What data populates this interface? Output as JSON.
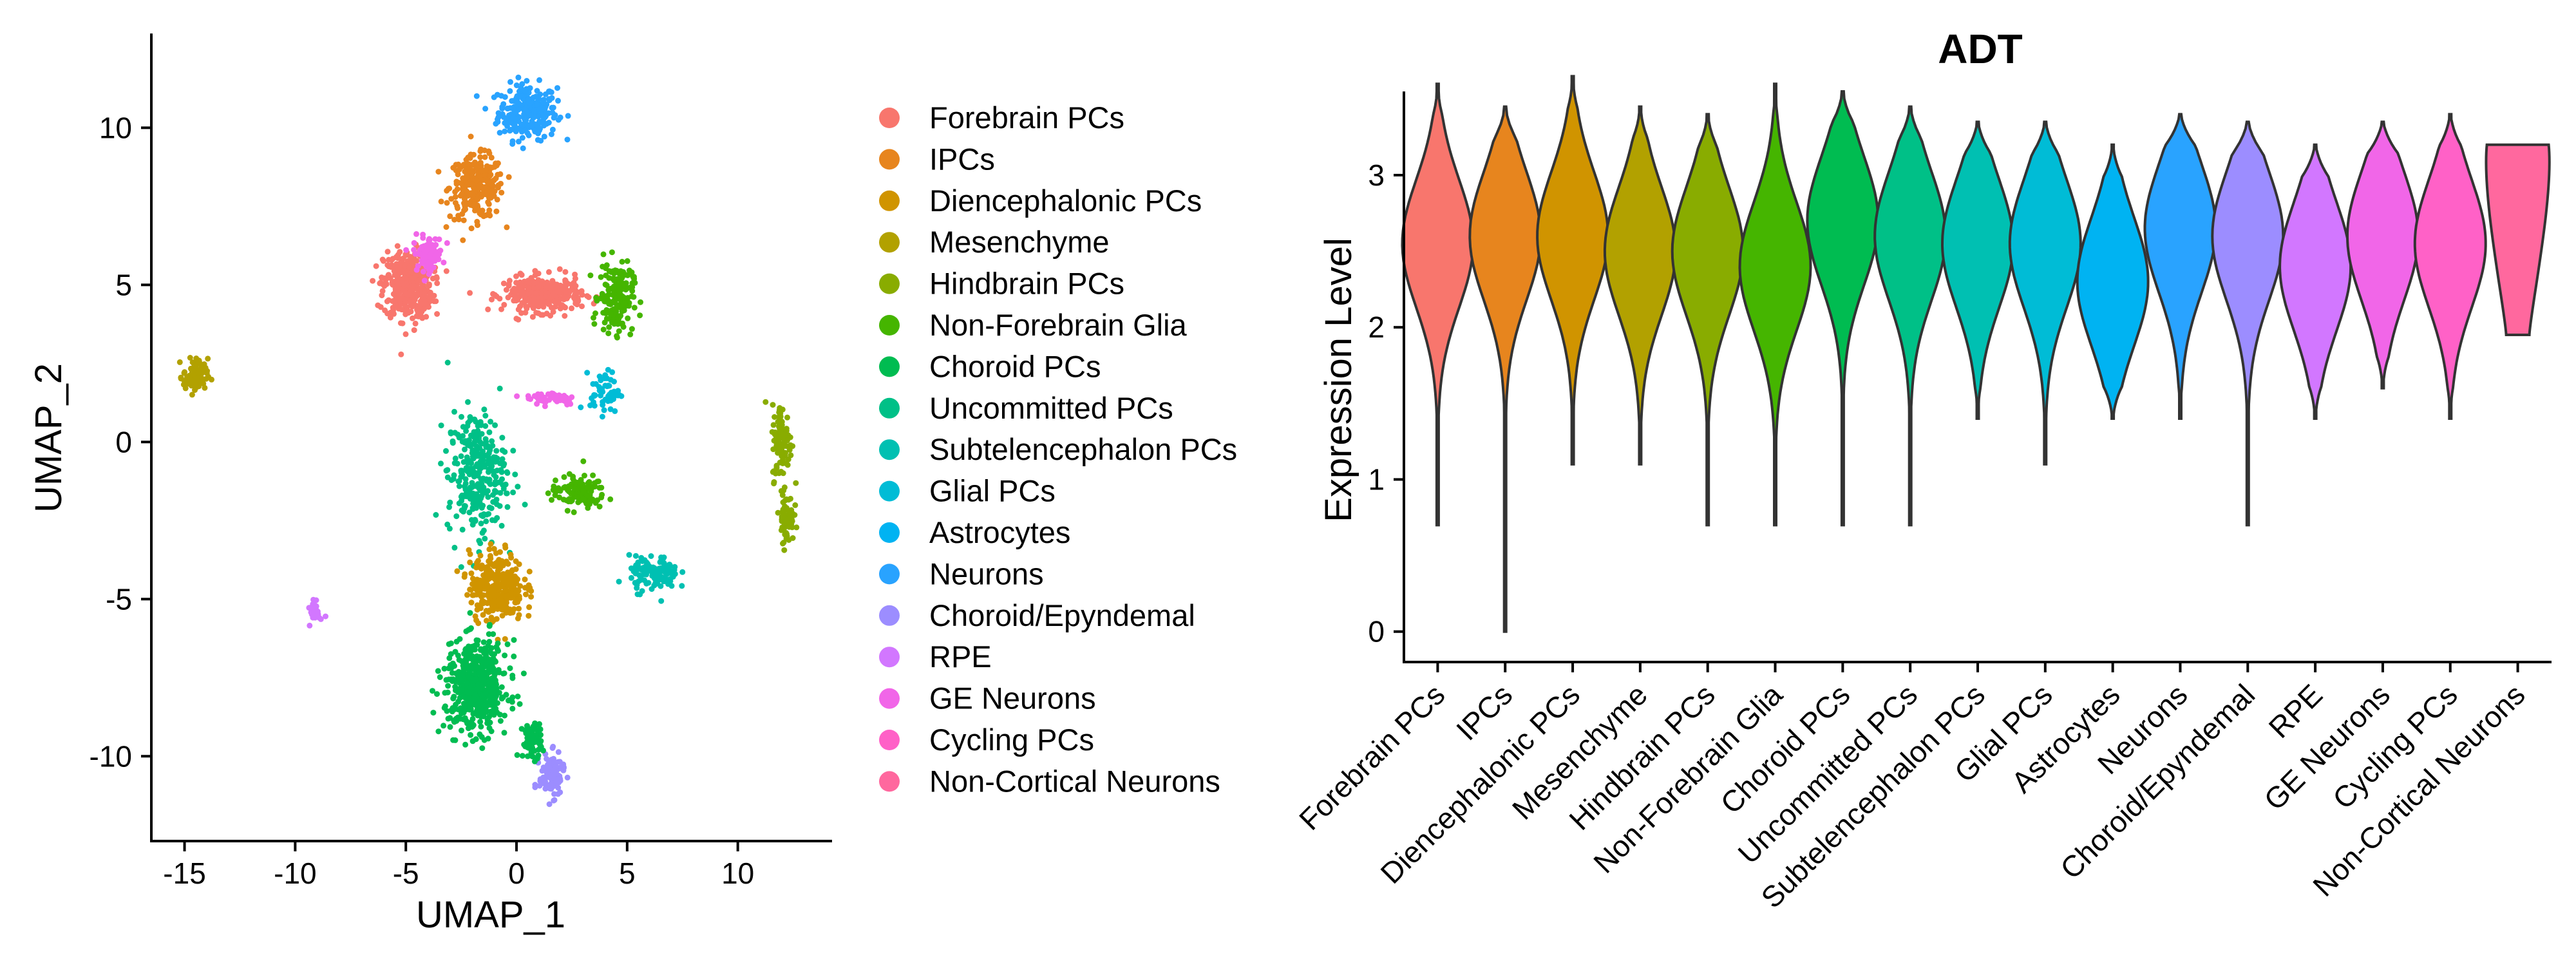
{
  "chart_data": [
    {
      "type": "scatter",
      "title": "",
      "xlabel": "UMAP_1",
      "ylabel": "UMAP_2",
      "xlim": [
        -16.5,
        14.2
      ],
      "ylim": [
        -12.7,
        13.0
      ],
      "xticks": [
        -15,
        -10,
        -5,
        0,
        5,
        10
      ],
      "yticks": [
        -10,
        -5,
        0,
        5,
        10
      ],
      "legend_position": "right",
      "legend": [
        {
          "label": "Forebrain PCs",
          "color": "#F8766D"
        },
        {
          "label": "IPCs",
          "color": "#E7851E"
        },
        {
          "label": "Diencephalonic PCs",
          "color": "#D09400"
        },
        {
          "label": "Mesenchyme",
          "color": "#B2A100"
        },
        {
          "label": "Hindbrain PCs",
          "color": "#89AC00"
        },
        {
          "label": "Non-Forebrain Glia",
          "color": "#45B500"
        },
        {
          "label": "Choroid PCs",
          "color": "#00BC51"
        },
        {
          "label": "Uncommitted PCs",
          "color": "#00C087"
        },
        {
          "label": "Subtelencephalon PCs",
          "color": "#00C0B2"
        },
        {
          "label": "Glial PCs",
          "color": "#00BCD6"
        },
        {
          "label": "Astrocytes",
          "color": "#00B3F2"
        },
        {
          "label": "Neurons",
          "color": "#29A3FF"
        },
        {
          "label": "Choroid/Epyndemal",
          "color": "#9C8DFF"
        },
        {
          "label": "RPE",
          "color": "#D277FF"
        },
        {
          "label": "GE Neurons",
          "color": "#F166E8"
        },
        {
          "label": "Cycling PCs",
          "color": "#FF61C7"
        },
        {
          "label": "Non-Cortical Neurons",
          "color": "#FF689E"
        }
      ],
      "clusters": [
        {
          "series": "Neurons",
          "x": 0.5,
          "y": 10.5,
          "sx": 1.2,
          "sy": 0.8,
          "n": 260
        },
        {
          "series": "IPCs",
          "x": -1.8,
          "y": 8.1,
          "sx": 1.1,
          "sy": 0.9,
          "n": 260
        },
        {
          "series": "Forebrain PCs",
          "x": -4.9,
          "y": 5.0,
          "sx": 1.0,
          "sy": 1.0,
          "n": 420
        },
        {
          "series": "GE Neurons",
          "x": -4.0,
          "y": 6.0,
          "sx": 0.6,
          "sy": 0.5,
          "n": 80
        },
        {
          "series": "Forebrain PCs",
          "x": 1.2,
          "y": 4.7,
          "sx": 1.6,
          "sy": 0.5,
          "n": 330
        },
        {
          "series": "Non-Forebrain Glia",
          "x": 4.5,
          "y": 4.6,
          "sx": 0.7,
          "sy": 1.0,
          "n": 180
        },
        {
          "series": "Mesenchyme",
          "x": -14.5,
          "y": 2.1,
          "sx": 0.5,
          "sy": 0.5,
          "n": 90
        },
        {
          "series": "Glial PCs",
          "x": 4.0,
          "y": 1.6,
          "sx": 0.6,
          "sy": 0.6,
          "n": 60
        },
        {
          "series": "GE Neurons",
          "x": 1.6,
          "y": 1.4,
          "sx": 1.1,
          "sy": 0.2,
          "n": 50
        },
        {
          "series": "Hindbrain PCs",
          "x": 12.0,
          "y": 0.0,
          "sx": 0.4,
          "sy": 1.1,
          "n": 110
        },
        {
          "series": "Hindbrain PCs",
          "x": 12.2,
          "y": -2.4,
          "sx": 0.3,
          "sy": 0.7,
          "n": 70
        },
        {
          "series": "Uncommitted PCs",
          "x": -1.8,
          "y": -1.0,
          "sx": 1.2,
          "sy": 1.8,
          "n": 300
        },
        {
          "series": "Non-Forebrain Glia",
          "x": 2.8,
          "y": -1.6,
          "sx": 1.1,
          "sy": 0.5,
          "n": 120
        },
        {
          "series": "Diencephalonic PCs",
          "x": -0.9,
          "y": -4.6,
          "sx": 1.1,
          "sy": 1.0,
          "n": 320
        },
        {
          "series": "Subtelencephalon PCs",
          "x": 6.2,
          "y": -4.2,
          "sx": 1.0,
          "sy": 0.5,
          "n": 120
        },
        {
          "series": "Choroid PCs",
          "x": -1.8,
          "y": -7.8,
          "sx": 1.3,
          "sy": 1.3,
          "n": 520
        },
        {
          "series": "RPE",
          "x": -9.1,
          "y": -5.4,
          "sx": 0.2,
          "sy": 0.3,
          "n": 40
        },
        {
          "series": "Choroid/Epyndemal",
          "x": 1.6,
          "y": -10.6,
          "sx": 0.5,
          "sy": 0.6,
          "n": 130
        },
        {
          "series": "Choroid PCs",
          "x": 0.7,
          "y": -9.5,
          "sx": 0.4,
          "sy": 0.5,
          "n": 80
        }
      ]
    },
    {
      "type": "violin",
      "title": "ADT",
      "xlabel": "",
      "ylabel": "Expression Level",
      "ylim": [
        -0.2,
        3.55
      ],
      "yticks": [
        0,
        1,
        2,
        3
      ],
      "categories": [
        "Forebrain PCs",
        "IPCs",
        "Diencephalonic PCs",
        "Mesenchyme",
        "Hindbrain PCs",
        "Non-Forebrain Glia",
        "Choroid PCs",
        "Uncommitted PCs",
        "Subtelencephalon PCs",
        "Glial PCs",
        "Astrocytes",
        "Neurons",
        "Choroid/Epyndemal",
        "RPE",
        "GE Neurons",
        "Cycling PCs",
        "Non-Cortical Neurons"
      ],
      "colors": [
        "#F8766D",
        "#E7851E",
        "#D09400",
        "#B2A100",
        "#89AC00",
        "#45B500",
        "#00BC51",
        "#00C087",
        "#00C0B2",
        "#00BCD6",
        "#00B3F2",
        "#29A3FF",
        "#9C8DFF",
        "#D277FF",
        "#F166E8",
        "#FF61C7",
        "#FF689E"
      ],
      "min": [
        0.7,
        0.0,
        1.1,
        1.1,
        0.7,
        0.7,
        0.7,
        0.7,
        1.4,
        1.1,
        1.4,
        1.4,
        0.7,
        1.4,
        1.6,
        1.4,
        1.95
      ],
      "max": [
        3.6,
        3.45,
        3.65,
        3.45,
        3.4,
        3.6,
        3.55,
        3.45,
        3.35,
        3.35,
        3.2,
        3.4,
        3.35,
        3.2,
        3.35,
        3.4,
        3.2
      ],
      "mode": [
        2.55,
        2.6,
        2.6,
        2.5,
        2.5,
        2.4,
        2.7,
        2.6,
        2.55,
        2.55,
        2.3,
        2.65,
        2.6,
        2.4,
        2.6,
        2.55,
        2.6
      ]
    }
  ]
}
